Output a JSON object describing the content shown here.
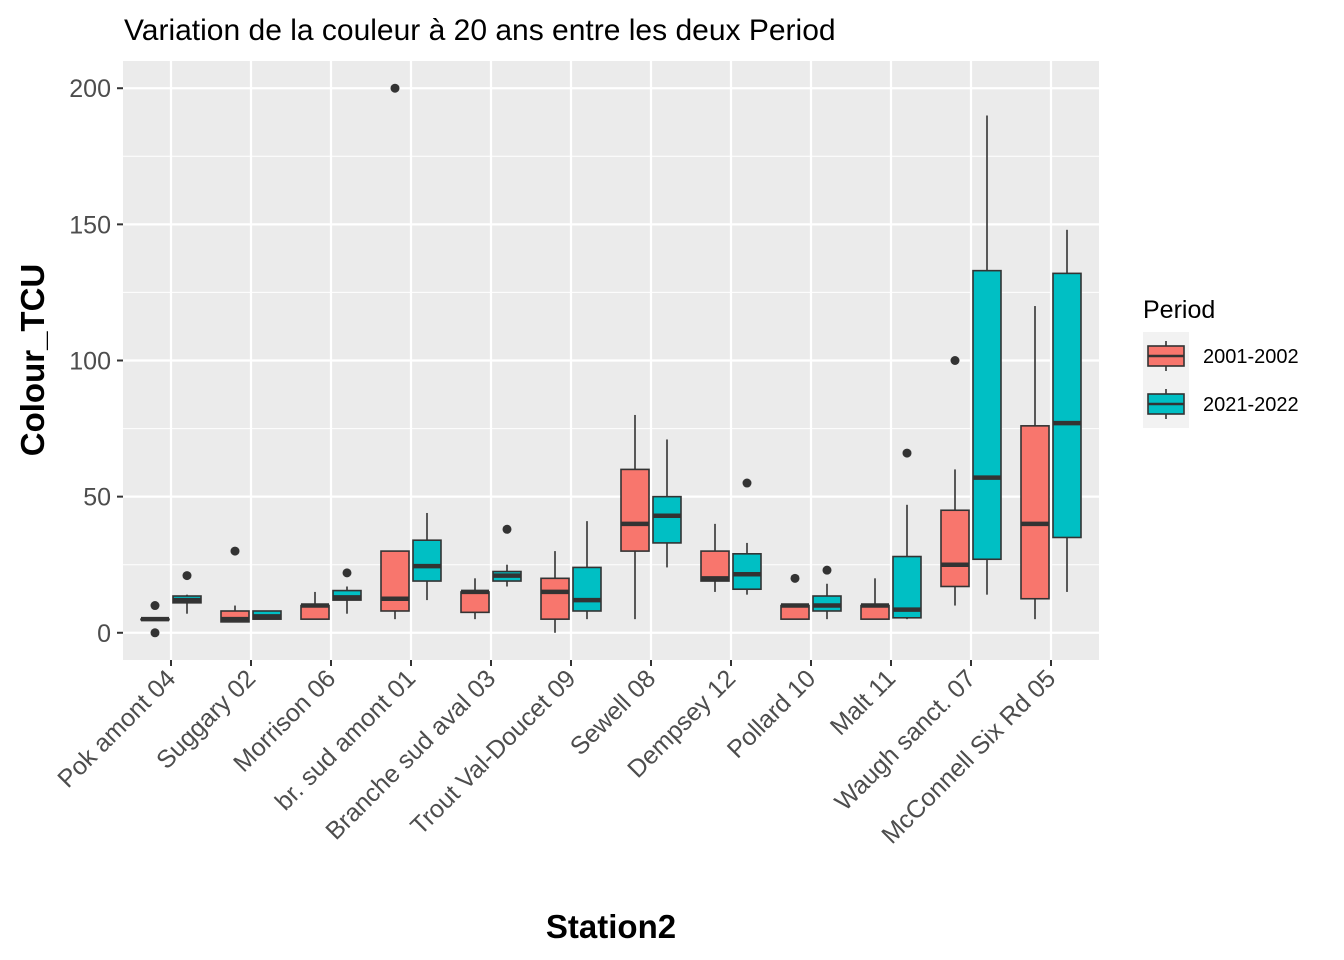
{
  "chart_data": {
    "type": "boxplot",
    "title": "Variation  de la couleur à 20 ans entre les deux Period",
    "xlabel": "Station2",
    "ylabel": "Colour_TCU",
    "ylim": [
      -10,
      210
    ],
    "yticks": [
      0,
      50,
      100,
      150,
      200
    ],
    "grid": true,
    "legend_position": "right",
    "legend_title": "Period",
    "categories": [
      "Pok amont 04",
      "Suggary 02",
      "Morrison 06",
      "br. sud amont 01",
      "Branche sud aval 03",
      "Trout Val-Doucet 09",
      "Sewell 08",
      "Dempsey 12",
      "Pollard 10",
      "Malt 11",
      "Waugh sanct. 07",
      "McConnell Six Rd 05"
    ],
    "series": [
      {
        "name": "2001-2002",
        "color": "#F8766D",
        "boxes": [
          {
            "whisker_low": 5,
            "q1": 5,
            "median": 5,
            "q3": 5,
            "whisker_high": 5,
            "outliers": [
              10,
              0
            ]
          },
          {
            "whisker_low": 4,
            "q1": 4,
            "median": 5,
            "q3": 8,
            "whisker_high": 10,
            "outliers": [
              30
            ]
          },
          {
            "whisker_low": 5,
            "q1": 5,
            "median": 10,
            "q3": 10,
            "whisker_high": 15,
            "outliers": []
          },
          {
            "whisker_low": 5,
            "q1": 8,
            "median": 12.5,
            "q3": 30,
            "whisker_high": 30,
            "outliers": [
              200
            ]
          },
          {
            "whisker_low": 5,
            "q1": 7.5,
            "median": 15,
            "q3": 15,
            "whisker_high": 20,
            "outliers": []
          },
          {
            "whisker_low": 0,
            "q1": 5,
            "median": 15,
            "q3": 20,
            "whisker_high": 30,
            "outliers": []
          },
          {
            "whisker_low": 5,
            "q1": 30,
            "median": 40,
            "q3": 60,
            "whisker_high": 80,
            "outliers": []
          },
          {
            "whisker_low": 15,
            "q1": 19,
            "median": 20,
            "q3": 30,
            "whisker_high": 40,
            "outliers": []
          },
          {
            "whisker_low": 5,
            "q1": 5,
            "median": 10,
            "q3": 10,
            "whisker_high": 10,
            "outliers": [
              20
            ]
          },
          {
            "whisker_low": 5,
            "q1": 5,
            "median": 10,
            "q3": 10,
            "whisker_high": 20,
            "outliers": []
          },
          {
            "whisker_low": 10,
            "q1": 17,
            "median": 25,
            "q3": 45,
            "whisker_high": 60,
            "outliers": [
              100
            ]
          },
          {
            "whisker_low": 5,
            "q1": 12.5,
            "median": 40,
            "q3": 76,
            "whisker_high": 120,
            "outliers": []
          }
        ]
      },
      {
        "name": "2021-2022",
        "color": "#00BFC4",
        "boxes": [
          {
            "whisker_low": 7,
            "q1": 11,
            "median": 12,
            "q3": 13.5,
            "whisker_high": 14,
            "outliers": [
              21
            ]
          },
          {
            "whisker_low": 5,
            "q1": 5,
            "median": 6,
            "q3": 8,
            "whisker_high": 8,
            "outliers": []
          },
          {
            "whisker_low": 7,
            "q1": 12,
            "median": 13,
            "q3": 15.5,
            "whisker_high": 17,
            "outliers": [
              22
            ]
          },
          {
            "whisker_low": 12,
            "q1": 19,
            "median": 24.5,
            "q3": 34,
            "whisker_high": 44,
            "outliers": []
          },
          {
            "whisker_low": 17,
            "q1": 19,
            "median": 21,
            "q3": 22.5,
            "whisker_high": 25,
            "outliers": [
              38
            ]
          },
          {
            "whisker_low": 5,
            "q1": 8,
            "median": 12,
            "q3": 24,
            "whisker_high": 41,
            "outliers": []
          },
          {
            "whisker_low": 24,
            "q1": 33,
            "median": 43,
            "q3": 50,
            "whisker_high": 71,
            "outliers": []
          },
          {
            "whisker_low": 14,
            "q1": 16,
            "median": 21.5,
            "q3": 29,
            "whisker_high": 33,
            "outliers": [
              55
            ]
          },
          {
            "whisker_low": 5,
            "q1": 8,
            "median": 10,
            "q3": 13.5,
            "whisker_high": 18,
            "outliers": [
              23
            ]
          },
          {
            "whisker_low": 5,
            "q1": 5.5,
            "median": 8.5,
            "q3": 28,
            "whisker_high": 47,
            "outliers": [
              66
            ]
          },
          {
            "whisker_low": 14,
            "q1": 27,
            "median": 57,
            "q3": 133,
            "whisker_high": 190,
            "outliers": []
          },
          {
            "whisker_low": 15,
            "q1": 35,
            "median": 77,
            "q3": 132,
            "whisker_high": 148,
            "outliers": []
          }
        ]
      }
    ]
  }
}
